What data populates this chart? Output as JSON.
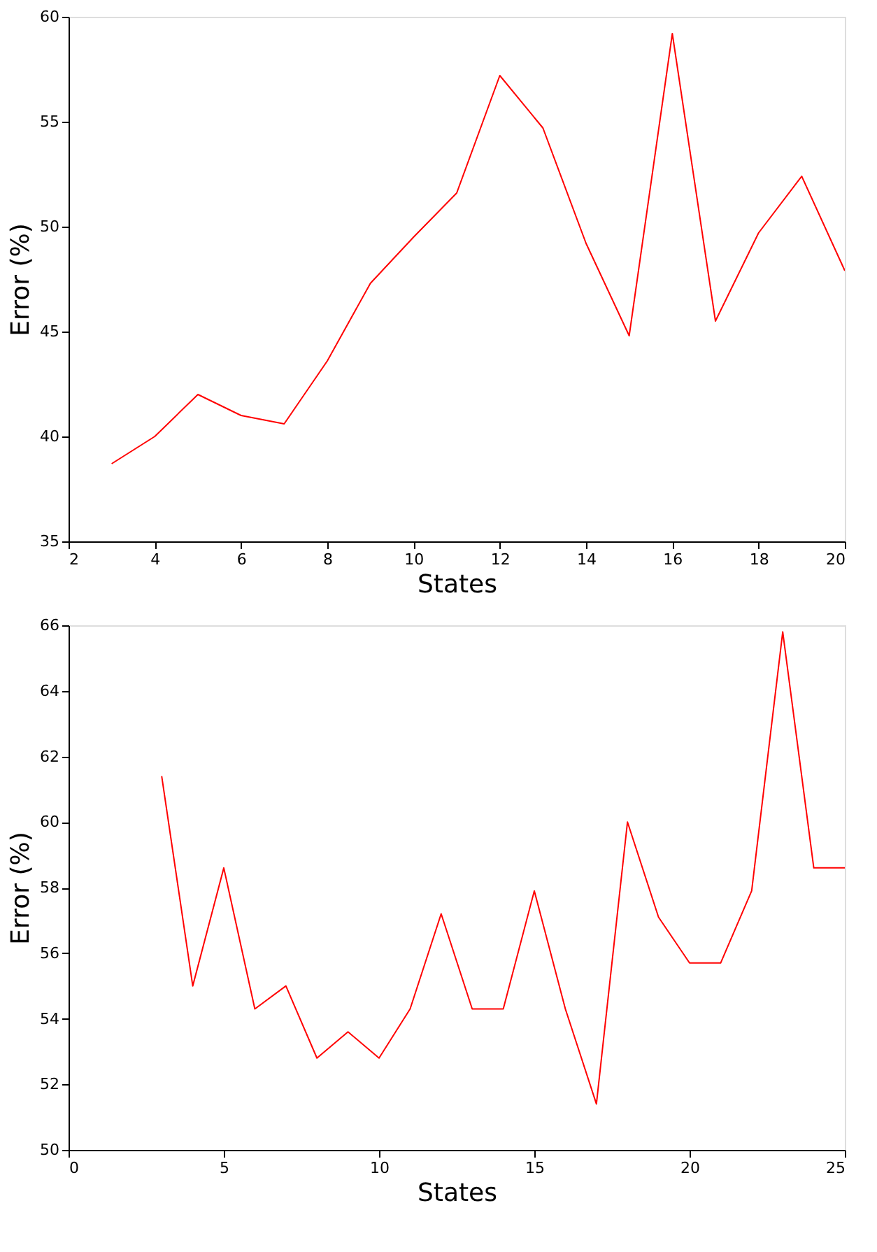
{
  "chart_data": [
    {
      "type": "line",
      "xlabel": "States",
      "ylabel": "Error (%)",
      "x": [
        3,
        4,
        5,
        6,
        7,
        8,
        9,
        10,
        11,
        12,
        13,
        14,
        15,
        16,
        17,
        18,
        19,
        20
      ],
      "series": [
        {
          "color": "#ff0000",
          "values": [
            38.7,
            40.0,
            42.0,
            41.0,
            40.6,
            43.6,
            47.3,
            49.5,
            51.6,
            57.2,
            54.7,
            49.2,
            44.8,
            59.2,
            45.5,
            49.7,
            52.4,
            47.9
          ]
        }
      ],
      "xlim": [
        2,
        20
      ],
      "xticks": [
        2,
        4,
        6,
        8,
        10,
        12,
        14,
        16,
        18,
        20
      ],
      "ylim": [
        35,
        60
      ],
      "yticks": [
        35,
        40,
        45,
        50,
        55,
        60
      ],
      "grid": false
    },
    {
      "type": "line",
      "xlabel": "States",
      "ylabel": "Error (%)",
      "x": [
        3,
        4,
        5,
        6,
        7,
        8,
        9,
        10,
        11,
        12,
        13,
        14,
        15,
        16,
        17,
        18,
        19,
        20,
        21,
        22,
        23,
        24,
        25
      ],
      "series": [
        {
          "color": "#ff0000",
          "values": [
            61.4,
            55.0,
            58.6,
            54.3,
            55.0,
            52.8,
            53.6,
            52.8,
            54.3,
            57.2,
            54.3,
            54.3,
            57.9,
            54.3,
            51.4,
            60.0,
            57.1,
            55.7,
            55.7,
            57.9,
            65.8,
            58.6,
            58.6
          ]
        }
      ],
      "xlim": [
        0,
        25
      ],
      "xticks": [
        0,
        5,
        10,
        15,
        20,
        25
      ],
      "ylim": [
        50,
        66
      ],
      "yticks": [
        50,
        52,
        54,
        56,
        58,
        60,
        62,
        64,
        66
      ],
      "grid": false
    }
  ]
}
